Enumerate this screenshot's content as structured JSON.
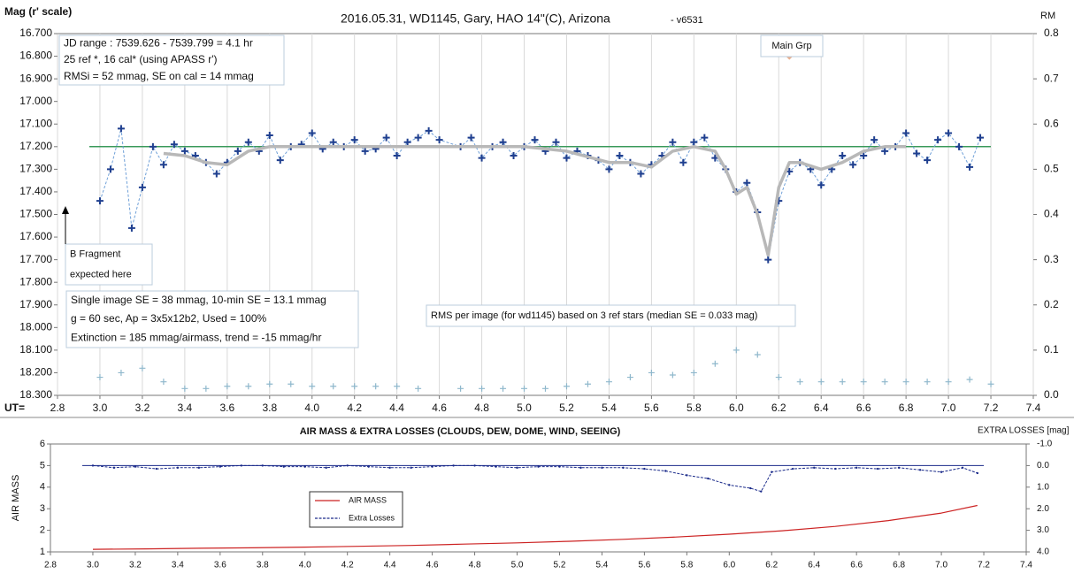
{
  "chart_data": [
    {
      "type": "line",
      "title": "2016.05.31,  WD1145, Gary, HAO 14\"(C), Arizona",
      "subtitle": "- v6531",
      "y_label": "Mag (r' scale)",
      "y2_label": "RM",
      "x_label": "UT=",
      "xlim": [
        2.8,
        7.4
      ],
      "xticks": [
        2.8,
        {
          "value": 3,
          "label": "3.0"
        },
        3.2,
        3.4,
        3.6,
        3.8,
        {
          "value": 4,
          "label": "4.0"
        },
        4.2,
        4.4,
        4.6,
        4.8,
        {
          "value": 5,
          "label": "5.0"
        },
        5.2,
        5.4,
        5.6,
        5.8,
        {
          "value": 6,
          "label": "6.0"
        },
        6.2,
        6.4,
        6.6,
        6.8,
        {
          "value": 7,
          "label": "7.0"
        },
        7.2,
        7.4
      ],
      "ylim": [
        16.7,
        18.3
      ],
      "y_inverted": true,
      "yticks": [
        {
          "value": 16.7,
          "label": "16.700"
        },
        {
          "value": 16.8,
          "label": "16.800"
        },
        {
          "value": 16.9,
          "label": "16.900"
        },
        {
          "value": 17,
          "label": "17.000"
        },
        {
          "value": 17.1,
          "label": "17.100"
        },
        {
          "value": 17.2,
          "label": "17.200"
        },
        {
          "value": 17.3,
          "label": "17.300"
        },
        {
          "value": 17.4,
          "label": "17.400"
        },
        {
          "value": 17.5,
          "label": "17.500"
        },
        {
          "value": 17.6,
          "label": "17.600"
        },
        {
          "value": 17.7,
          "label": "17.700"
        },
        {
          "value": 17.8,
          "label": "17.800"
        },
        {
          "value": 17.9,
          "label": "17.900"
        },
        {
          "value": 18,
          "label": "18.000"
        },
        {
          "value": 18.1,
          "label": "18.100"
        },
        {
          "value": 18.2,
          "label": "18.200"
        },
        {
          "value": 18.3,
          "label": "18.300"
        }
      ],
      "y2lim": [
        0,
        0.8
      ],
      "y2ticks": [
        {
          "value": 0,
          "label": "0.0"
        },
        0.1,
        0.2,
        0.3,
        0.4,
        0.5,
        0.6,
        0.7,
        0.8
      ],
      "grid": "x",
      "series": [
        {
          "style": "line",
          "color": "#3a9a5a",
          "width": 1.5,
          "x": [
            2.95,
            7.2
          ],
          "values": [
            17.2,
            17.2
          ]
        },
        {
          "style": "plus-dashed",
          "color": "#1f3f8f",
          "line_color": "#6fa0d8",
          "x": [
            3.0,
            3.05,
            3.1,
            3.15,
            3.2,
            3.25,
            3.3,
            3.35,
            3.4,
            3.45,
            3.5,
            3.55,
            3.6,
            3.65,
            3.7,
            3.75,
            3.8,
            3.85,
            3.9,
            3.95,
            4.0,
            4.05,
            4.1,
            4.15,
            4.2,
            4.25,
            4.3,
            4.35,
            4.4,
            4.45,
            4.5,
            4.55,
            4.6,
            4.7,
            4.75,
            4.8,
            4.85,
            4.9,
            4.95,
            5.0,
            5.05,
            5.1,
            5.15,
            5.2,
            5.25,
            5.3,
            5.35,
            5.4,
            5.45,
            5.5,
            5.55,
            5.6,
            5.65,
            5.7,
            5.75,
            5.8,
            5.85,
            5.9,
            5.95,
            6.0,
            6.05,
            6.1,
            6.15,
            6.2,
            6.25,
            6.3,
            6.35,
            6.4,
            6.45,
            6.5,
            6.55,
            6.6,
            6.65,
            6.7,
            6.75,
            6.8,
            6.85,
            6.9,
            6.95,
            7.0,
            7.05,
            7.1,
            7.15
          ],
          "values": [
            17.44,
            17.3,
            17.12,
            17.56,
            17.38,
            17.2,
            17.28,
            17.19,
            17.22,
            17.24,
            17.27,
            17.32,
            17.27,
            17.22,
            17.18,
            17.22,
            17.15,
            17.26,
            17.2,
            17.19,
            17.14,
            17.21,
            17.18,
            17.2,
            17.17,
            17.22,
            17.21,
            17.16,
            17.24,
            17.18,
            17.16,
            17.13,
            17.17,
            17.2,
            17.16,
            17.25,
            17.2,
            17.18,
            17.24,
            17.2,
            17.17,
            17.22,
            17.18,
            17.25,
            17.22,
            17.24,
            17.26,
            17.3,
            17.24,
            17.27,
            17.32,
            17.28,
            17.24,
            17.18,
            17.27,
            17.18,
            17.16,
            17.25,
            17.3,
            17.4,
            17.36,
            17.49,
            17.7,
            17.44,
            17.31,
            17.27,
            17.3,
            17.37,
            17.3,
            17.24,
            17.28,
            17.24,
            17.17,
            17.22,
            17.2,
            17.14,
            17.23,
            17.26,
            17.17,
            17.14,
            17.2,
            17.29,
            17.16
          ]
        },
        {
          "style": "line",
          "color": "#b8b8b8",
          "width": 3.5,
          "x": [
            3.3,
            3.4,
            3.5,
            3.6,
            3.7,
            3.8,
            4.0,
            4.2,
            4.5,
            4.8,
            5.0,
            5.2,
            5.4,
            5.5,
            5.6,
            5.7,
            5.8,
            5.9,
            5.95,
            6.0,
            6.05,
            6.1,
            6.15,
            6.2,
            6.25,
            6.3,
            6.4,
            6.5,
            6.6,
            6.7,
            6.8
          ],
          "values": [
            17.23,
            17.24,
            17.27,
            17.28,
            17.22,
            17.2,
            17.2,
            17.2,
            17.2,
            17.2,
            17.2,
            17.22,
            17.27,
            17.27,
            17.29,
            17.22,
            17.2,
            17.22,
            17.3,
            17.41,
            17.38,
            17.5,
            17.68,
            17.38,
            17.27,
            17.27,
            17.3,
            17.27,
            17.22,
            17.2,
            17.2
          ]
        },
        {
          "style": "plus",
          "color": "#8fb8cc",
          "axis": "y2",
          "x": [
            3.0,
            3.1,
            3.2,
            3.3,
            3.4,
            3.5,
            3.6,
            3.7,
            3.8,
            3.9,
            4.0,
            4.1,
            4.2,
            4.3,
            4.4,
            4.5,
            4.7,
            4.8,
            4.9,
            5.0,
            5.1,
            5.2,
            5.3,
            5.4,
            5.5,
            5.6,
            5.7,
            5.8,
            5.9,
            6.0,
            6.1,
            6.2,
            6.3,
            6.4,
            6.5,
            6.6,
            6.7,
            6.8,
            6.9,
            7.0,
            7.1,
            7.2
          ],
          "values": [
            0.04,
            0.05,
            0.06,
            0.03,
            0.015,
            0.015,
            0.02,
            0.02,
            0.025,
            0.025,
            0.02,
            0.02,
            0.02,
            0.02,
            0.02,
            0.015,
            0.015,
            0.015,
            0.015,
            0.015,
            0.015,
            0.02,
            0.025,
            0.03,
            0.04,
            0.05,
            0.045,
            0.05,
            0.07,
            0.1,
            0.09,
            0.04,
            0.03,
            0.03,
            0.03,
            0.03,
            0.03,
            0.03,
            0.03,
            0.03,
            0.035,
            0.025
          ]
        },
        {
          "style": "diamond",
          "color": "#e8b090",
          "axis": "y2",
          "x": [
            6.25
          ],
          "values": [
            0.75
          ]
        }
      ],
      "annotations": [
        {
          "lines": [
            "JD range  : 7539.626 - 7539.799  = 4.1 hr",
            "  25 ref *,  16 cal* (using APASS r')",
            "RMSi = 52 mmag, SE on cal = 14 mmag"
          ]
        },
        {
          "lines": [
            "Single image SE = 38 mmag, 10-min SE = 13.1 mmag",
            "g = 60 sec, Ap = 3x5x12b2, Used = 100%",
            "Extinction = 185 mmag/airmass, trend = -15 mmag/hr"
          ]
        },
        {
          "lines": [
            "B Fragment",
            "expected here"
          ]
        },
        {
          "lines": [
            "RMS per image (for wd1145) based on 3 ref stars (median SE = 0.033 mag)"
          ]
        },
        {
          "lines": [
            "Main Grp"
          ]
        }
      ]
    },
    {
      "type": "line",
      "title": "AIR MASS & EXTRA LOSSES (CLOUDS, DEW, DOME, WIND, SEEING)",
      "y_label": "AIR MASS",
      "y2_label": "EXTRA LOSSES [mag]",
      "xlim": [
        2.8,
        7.4
      ],
      "xticks": [
        2.8,
        {
          "value": 3,
          "label": "3.0"
        },
        3.2,
        3.4,
        3.6,
        3.8,
        {
          "value": 4,
          "label": "4.0"
        },
        4.2,
        4.4,
        4.6,
        4.8,
        {
          "value": 5,
          "label": "5.0"
        },
        5.2,
        5.4,
        5.6,
        5.8,
        {
          "value": 6,
          "label": "6.0"
        },
        6.2,
        6.4,
        6.6,
        6.8,
        {
          "value": 7,
          "label": "7.0"
        },
        7.2,
        7.4
      ],
      "ylim": [
        1,
        6
      ],
      "yticks": [
        1,
        2,
        3,
        4,
        5,
        6
      ],
      "y2lim": [
        -1,
        4
      ],
      "y2_inverted": true,
      "y2ticks": [
        {
          "value": -1,
          "label": "-1.0"
        },
        {
          "value": 0,
          "label": "0.0"
        },
        {
          "value": 1,
          "label": "1.0"
        },
        {
          "value": 2,
          "label": "2.0"
        },
        {
          "value": 3,
          "label": "3.0"
        },
        {
          "value": 4,
          "label": "4.0"
        }
      ],
      "grid": false,
      "legend": "center-left",
      "series": [
        {
          "style": "line",
          "color": "#1a2a8a",
          "width": 1,
          "axis": "y2",
          "x": [
            2.95,
            7.2
          ],
          "values": [
            0,
            0
          ]
        },
        {
          "name": "AIR MASS",
          "style": "line",
          "color": "#cc2222",
          "width": 1.2,
          "x": [
            3.0,
            3.25,
            3.5,
            3.75,
            4.0,
            4.25,
            4.5,
            4.75,
            5.0,
            5.25,
            5.5,
            5.75,
            6.0,
            6.25,
            6.5,
            6.75,
            7.0,
            7.17
          ],
          "values": [
            1.12,
            1.14,
            1.17,
            1.19,
            1.22,
            1.26,
            1.3,
            1.36,
            1.42,
            1.49,
            1.58,
            1.69,
            1.82,
            1.98,
            2.18,
            2.45,
            2.8,
            3.15
          ]
        },
        {
          "name": "Extra Losses",
          "style": "dot-dashed",
          "color": "#1a2a8a",
          "axis": "y2",
          "x": [
            3.0,
            3.1,
            3.2,
            3.3,
            3.4,
            3.5,
            3.6,
            3.7,
            3.8,
            3.9,
            4.0,
            4.1,
            4.2,
            4.3,
            4.4,
            4.5,
            4.6,
            4.7,
            4.8,
            4.9,
            5.0,
            5.1,
            5.2,
            5.3,
            5.4,
            5.5,
            5.6,
            5.7,
            5.8,
            5.9,
            6.0,
            6.1,
            6.15,
            6.2,
            6.3,
            6.4,
            6.5,
            6.6,
            6.7,
            6.8,
            6.9,
            7.0,
            7.1,
            7.17
          ],
          "values": [
            0.0,
            0.1,
            0.05,
            0.15,
            0.1,
            0.1,
            0.05,
            0.0,
            0.0,
            0.05,
            0.05,
            0.1,
            0.0,
            0.05,
            0.1,
            0.1,
            0.05,
            0.0,
            0.0,
            0.05,
            0.1,
            0.05,
            0.05,
            0.1,
            0.1,
            0.1,
            0.15,
            0.25,
            0.45,
            0.6,
            0.9,
            1.05,
            1.2,
            0.3,
            0.15,
            0.1,
            0.15,
            0.1,
            0.15,
            0.1,
            0.2,
            0.3,
            0.1,
            0.35
          ]
        }
      ]
    }
  ]
}
